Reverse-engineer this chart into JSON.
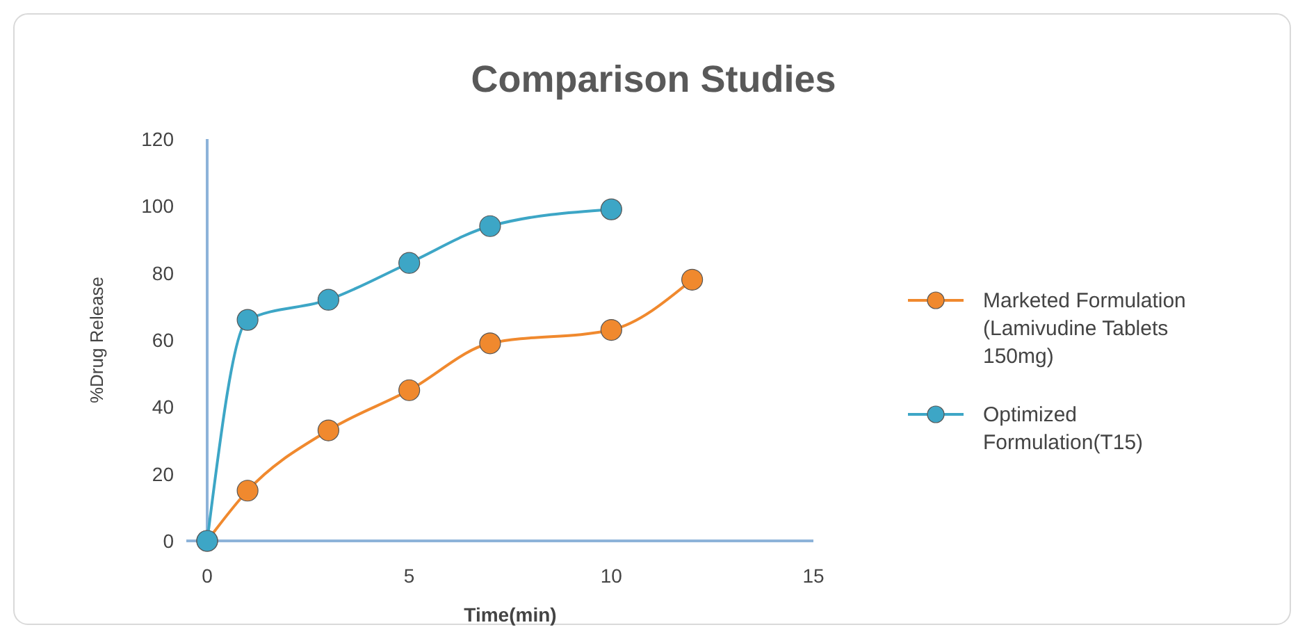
{
  "chart_data": {
    "type": "line",
    "title": "Comparison Studies",
    "xlabel": "Time(min)",
    "ylabel": "%Drug Release",
    "xlim": [
      0,
      15
    ],
    "xticks": [
      0,
      5,
      10,
      15
    ],
    "ylim": [
      0,
      120
    ],
    "yticks": [
      0,
      20,
      40,
      60,
      80,
      100,
      120
    ],
    "grid": false,
    "legend": "right",
    "marker": "circle",
    "line_style": "solid",
    "series": [
      {
        "name": "Marketed Formulation (Lamivudine Tablets 150mg)",
        "color": "#f0892e",
        "x": [
          0,
          1,
          3,
          5,
          7,
          10,
          12
        ],
        "values": [
          0,
          15,
          33,
          45,
          59,
          63,
          78
        ]
      },
      {
        "name": "Optimized Formulation(T15)",
        "color": "#3da6c6",
        "x": [
          0,
          1,
          3,
          5,
          7,
          10
        ],
        "values": [
          0,
          66,
          72,
          83,
          94,
          99
        ]
      }
    ]
  }
}
